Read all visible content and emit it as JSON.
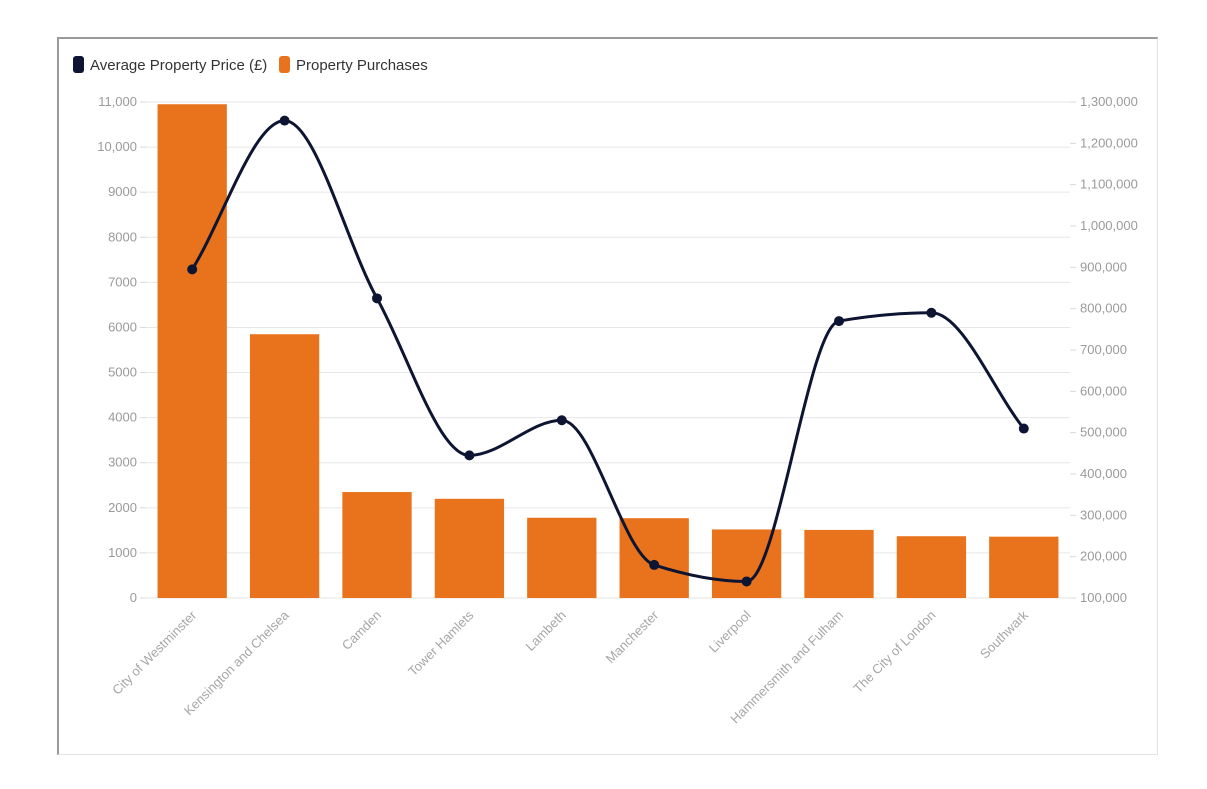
{
  "chart_data": {
    "type": "bar",
    "title": "",
    "xlabel": "",
    "ylabel": "",
    "legend_position": "top-left",
    "grid": true,
    "categories": [
      "City of Westminster",
      "Kensington and Chelsea",
      "Camden",
      "Tower Hamlets",
      "Lambeth",
      "Manchester",
      "Liverpool",
      "Hammersmith and Fulham",
      "The City of London",
      "Southwark"
    ],
    "series": [
      {
        "name": "Average Property Price (£)",
        "type": "line",
        "axis": "right",
        "color": "#0d1533",
        "values": [
          895000,
          1255000,
          825000,
          445000,
          530000,
          180000,
          140000,
          770000,
          790000,
          510000
        ]
      },
      {
        "name": "Property Purchases",
        "type": "bar",
        "axis": "left",
        "color": "#e8731c",
        "values": [
          10950,
          5850,
          2350,
          2200,
          1780,
          1770,
          1520,
          1510,
          1370,
          1360
        ]
      }
    ],
    "y_left": {
      "ylim": [
        0,
        11000
      ],
      "ticks": [
        0,
        1000,
        2000,
        3000,
        4000,
        5000,
        6000,
        7000,
        8000,
        9000,
        10000,
        11000
      ],
      "tick_labels": [
        "0",
        "1000",
        "2000",
        "3000",
        "4000",
        "5000",
        "6000",
        "7000",
        "8000",
        "9000",
        "10,000",
        "11,000"
      ]
    },
    "y_right": {
      "ylim": [
        100000,
        1300000
      ],
      "ticks": [
        100000,
        200000,
        300000,
        400000,
        500000,
        600000,
        700000,
        800000,
        900000,
        1000000,
        1100000,
        1200000,
        1300000
      ],
      "tick_labels": [
        "100,000",
        "200,000",
        "300,000",
        "400,000",
        "500,000",
        "600,000",
        "700,000",
        "800,000",
        "900,000",
        "1,000,000",
        "1,100,000",
        "1,200,000",
        "1,300,000"
      ]
    }
  }
}
